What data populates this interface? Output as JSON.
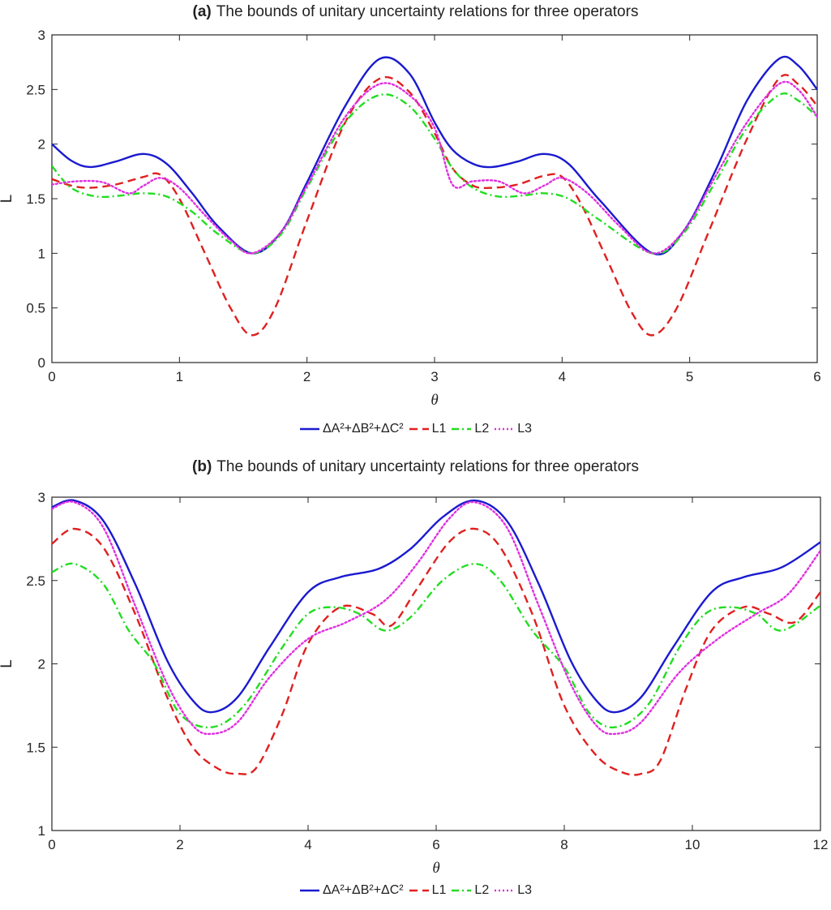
{
  "chart_data": [
    {
      "panel_label": "(a)",
      "type": "line",
      "title": "The bounds of unitary uncertainty relations for three operators",
      "xlabel": "θ",
      "ylabel": "L",
      "xlim": [
        0,
        6
      ],
      "ylim": [
        0,
        3
      ],
      "xticks": [
        "0",
        "1",
        "2",
        "3",
        "4",
        "5",
        "6"
      ],
      "yticks": [
        "0",
        "0.5",
        "1",
        "1.5",
        "2",
        "2.5",
        "3"
      ],
      "grid": false,
      "legend_position": "bottom-center",
      "series": [
        {
          "name": "ΔA²+ΔB²+ΔC²",
          "color": "#1a1ad0",
          "style": "solid",
          "x": [
            0,
            0.15,
            0.3,
            0.5,
            0.72,
            0.9,
            1.1,
            1.3,
            1.57,
            1.8,
            2.0,
            2.3,
            2.57,
            2.8,
            3.0,
            3.14,
            3.3,
            3.45,
            3.65,
            3.86,
            4.05,
            4.3,
            4.71,
            4.95,
            5.2,
            5.45,
            5.7,
            5.85,
            6.0
          ],
          "y": [
            2.0,
            1.85,
            1.79,
            1.84,
            1.91,
            1.82,
            1.55,
            1.25,
            1.0,
            1.2,
            1.65,
            2.35,
            2.78,
            2.65,
            2.2,
            1.95,
            1.82,
            1.79,
            1.84,
            1.91,
            1.82,
            1.48,
            1.0,
            1.2,
            1.75,
            2.4,
            2.78,
            2.72,
            2.5
          ]
        },
        {
          "name": "L1",
          "color": "#e02020",
          "style": "dashed",
          "x": [
            0,
            0.15,
            0.3,
            0.5,
            0.72,
            0.85,
            1.0,
            1.2,
            1.4,
            1.57,
            1.75,
            2.0,
            2.3,
            2.57,
            2.8,
            3.0,
            3.14,
            3.3,
            3.45,
            3.65,
            3.86,
            4.0,
            4.15,
            4.35,
            4.55,
            4.71,
            4.9,
            5.15,
            5.45,
            5.7,
            5.85,
            6.0
          ],
          "y": [
            1.68,
            1.62,
            1.6,
            1.63,
            1.7,
            1.72,
            1.5,
            1.0,
            0.5,
            0.25,
            0.5,
            1.3,
            2.2,
            2.6,
            2.48,
            2.1,
            1.78,
            1.62,
            1.6,
            1.63,
            1.71,
            1.7,
            1.45,
            0.95,
            0.45,
            0.25,
            0.5,
            1.2,
            2.05,
            2.6,
            2.55,
            2.35
          ]
        },
        {
          "name": "L2",
          "color": "#22dd22",
          "style": "dashdot",
          "x": [
            0,
            0.15,
            0.35,
            0.55,
            0.72,
            0.9,
            1.1,
            1.3,
            1.57,
            1.8,
            2.0,
            2.3,
            2.57,
            2.8,
            3.0,
            3.14,
            3.3,
            3.5,
            3.7,
            3.86,
            4.05,
            4.3,
            4.71,
            4.95,
            5.2,
            5.45,
            5.7,
            5.85,
            6.0
          ],
          "y": [
            1.8,
            1.6,
            1.52,
            1.53,
            1.55,
            1.52,
            1.38,
            1.18,
            1.0,
            1.18,
            1.6,
            2.2,
            2.45,
            2.35,
            2.05,
            1.78,
            1.6,
            1.52,
            1.53,
            1.55,
            1.5,
            1.3,
            1.0,
            1.18,
            1.65,
            2.15,
            2.45,
            2.4,
            2.25
          ]
        },
        {
          "name": "L3",
          "color": "#e030e0",
          "style": "dotted",
          "x": [
            0,
            0.2,
            0.4,
            0.6,
            0.72,
            0.85,
            1.0,
            1.2,
            1.4,
            1.57,
            1.8,
            2.0,
            2.3,
            2.57,
            2.8,
            3.0,
            3.14,
            3.3,
            3.5,
            3.7,
            3.86,
            4.0,
            4.2,
            4.45,
            4.71,
            4.95,
            5.2,
            5.45,
            5.7,
            5.85,
            6.0
          ],
          "y": [
            1.63,
            1.66,
            1.65,
            1.55,
            1.62,
            1.69,
            1.6,
            1.35,
            1.12,
            1.0,
            1.2,
            1.62,
            2.25,
            2.55,
            2.45,
            2.15,
            1.63,
            1.66,
            1.66,
            1.55,
            1.62,
            1.69,
            1.55,
            1.25,
            1.0,
            1.2,
            1.7,
            2.2,
            2.55,
            2.5,
            2.25
          ]
        }
      ]
    },
    {
      "panel_label": "(b)",
      "type": "line",
      "title": "The bounds of unitary uncertainty relations for three operators",
      "xlabel": "θ",
      "ylabel": "L",
      "xlim": [
        0,
        12
      ],
      "ylim": [
        1,
        3
      ],
      "xticks": [
        "0",
        "2",
        "4",
        "6",
        "8",
        "10",
        "12"
      ],
      "yticks": [
        "1",
        "1.5",
        "2",
        "2.5",
        "3"
      ],
      "grid": false,
      "legend_position": "bottom-center",
      "series": [
        {
          "name": "ΔA²+ΔB²+ΔC²",
          "color": "#1a1ad0",
          "style": "solid",
          "x": [
            0,
            0.35,
            0.8,
            1.3,
            1.8,
            2.2,
            2.5,
            2.9,
            3.4,
            4.0,
            4.5,
            5.1,
            5.6,
            6.1,
            6.6,
            7.1,
            7.6,
            8.1,
            8.5,
            8.8,
            9.2,
            9.7,
            10.3,
            10.8,
            11.4,
            12.0
          ],
          "y": [
            2.94,
            2.98,
            2.86,
            2.48,
            2.02,
            1.78,
            1.71,
            1.8,
            2.1,
            2.43,
            2.52,
            2.57,
            2.69,
            2.88,
            2.98,
            2.86,
            2.48,
            2.02,
            1.78,
            1.71,
            1.8,
            2.1,
            2.43,
            2.52,
            2.58,
            2.73
          ]
        },
        {
          "name": "L1",
          "color": "#e02020",
          "style": "dashed",
          "x": [
            0,
            0.35,
            0.8,
            1.3,
            1.8,
            2.2,
            2.6,
            2.9,
            3.2,
            3.6,
            4.0,
            4.5,
            5.0,
            5.3,
            5.7,
            6.2,
            6.6,
            7.0,
            7.5,
            8.0,
            8.5,
            8.9,
            9.2,
            9.5,
            9.9,
            10.3,
            10.8,
            11.2,
            11.6,
            12.0
          ],
          "y": [
            2.72,
            2.81,
            2.7,
            2.3,
            1.8,
            1.5,
            1.37,
            1.34,
            1.38,
            1.7,
            2.12,
            2.34,
            2.3,
            2.23,
            2.45,
            2.73,
            2.81,
            2.7,
            2.3,
            1.75,
            1.45,
            1.35,
            1.34,
            1.42,
            1.85,
            2.2,
            2.34,
            2.3,
            2.25,
            2.43
          ]
        },
        {
          "name": "L2",
          "color": "#22dd22",
          "style": "dashdot",
          "x": [
            0,
            0.35,
            0.8,
            1.2,
            1.6,
            2.0,
            2.5,
            3.0,
            3.6,
            4.0,
            4.4,
            4.8,
            5.2,
            5.6,
            6.1,
            6.6,
            7.0,
            7.5,
            8.0,
            8.4,
            8.8,
            9.3,
            9.8,
            10.2,
            10.6,
            11.0,
            11.4,
            12.0
          ],
          "y": [
            2.55,
            2.6,
            2.48,
            2.2,
            2.0,
            1.7,
            1.62,
            1.75,
            2.1,
            2.3,
            2.34,
            2.3,
            2.2,
            2.28,
            2.5,
            2.6,
            2.5,
            2.2,
            1.98,
            1.7,
            1.62,
            1.75,
            2.1,
            2.3,
            2.34,
            2.3,
            2.2,
            2.35
          ]
        },
        {
          "name": "L3",
          "color": "#e030e0",
          "style": "dotted",
          "x": [
            0,
            0.35,
            0.8,
            1.3,
            1.8,
            2.2,
            2.5,
            2.9,
            3.4,
            4.0,
            4.6,
            5.2,
            5.7,
            6.2,
            6.6,
            7.1,
            7.6,
            8.1,
            8.5,
            8.8,
            9.2,
            9.8,
            10.4,
            11.0,
            11.5,
            12.0
          ],
          "y": [
            2.93,
            2.97,
            2.82,
            2.35,
            1.88,
            1.63,
            1.58,
            1.65,
            1.92,
            2.15,
            2.25,
            2.38,
            2.6,
            2.87,
            2.97,
            2.82,
            2.35,
            1.88,
            1.63,
            1.58,
            1.65,
            1.95,
            2.15,
            2.3,
            2.42,
            2.68
          ]
        }
      ]
    }
  ]
}
